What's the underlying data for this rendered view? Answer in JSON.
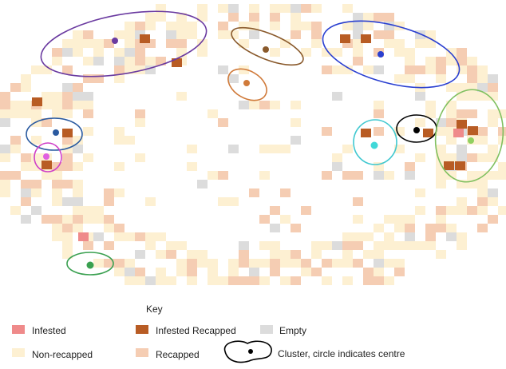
{
  "key": {
    "title": "Key",
    "items": [
      {
        "label": "Infested"
      },
      {
        "label": "Infested Recapped"
      },
      {
        "label": "Empty"
      },
      {
        "label": "Non-recapped"
      },
      {
        "label": "Recapped"
      }
    ],
    "cluster_note": "Cluster, circle indicates centre"
  }
}
